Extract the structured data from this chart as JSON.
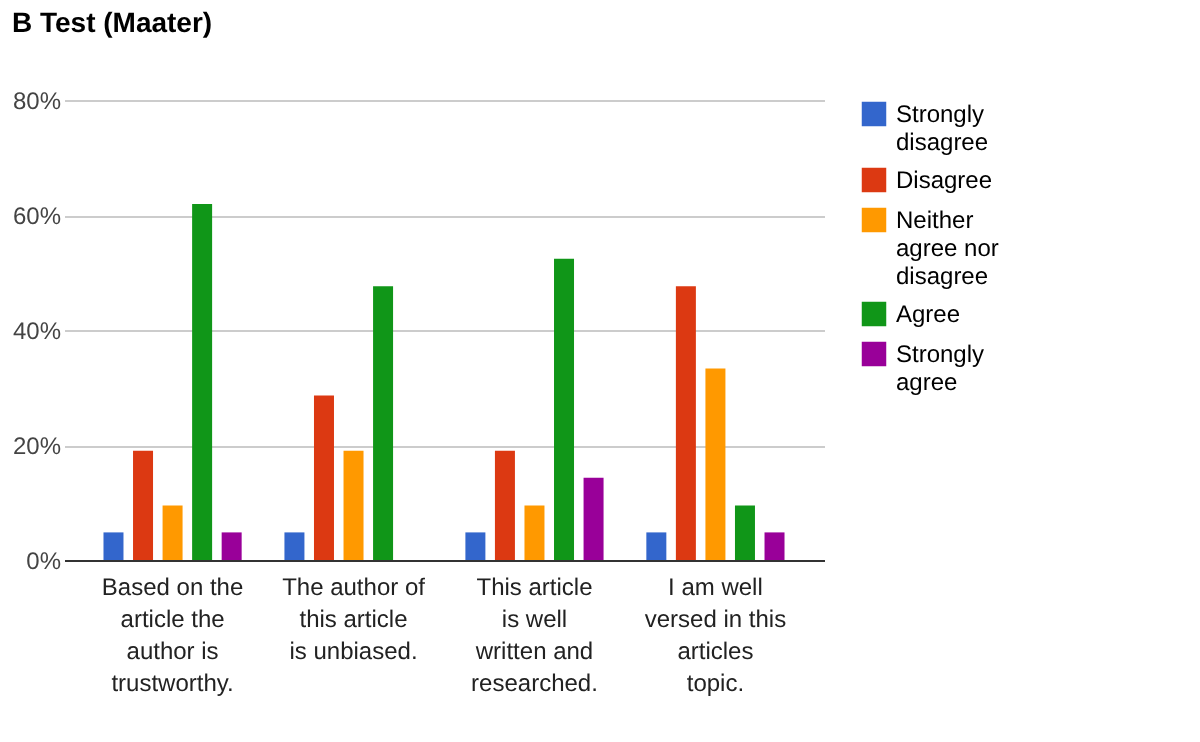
{
  "chart_data": {
    "type": "bar",
    "title": "B Test (Maater)",
    "categories": [
      "Based on the article the author is trustworthy.",
      "The author of this article is unbiased.",
      "This article is well written and researched.",
      "I am well versed in this articles topic."
    ],
    "series": [
      {
        "name": "Strongly disagree",
        "color": "#3366cc",
        "values": [
          4.8,
          4.8,
          4.8,
          4.8
        ]
      },
      {
        "name": "Disagree",
        "color": "#dc3912",
        "values": [
          19.0,
          28.6,
          19.0,
          47.6
        ]
      },
      {
        "name": "Neither agree nor disagree",
        "color": "#ff9900",
        "values": [
          9.5,
          19.0,
          9.5,
          33.3
        ]
      },
      {
        "name": "Agree",
        "color": "#109618",
        "values": [
          61.9,
          47.6,
          52.4,
          9.5
        ]
      },
      {
        "name": "Strongly agree",
        "color": "#990099",
        "values": [
          4.8,
          0,
          14.3,
          4.8
        ]
      }
    ],
    "ylim": [
      0,
      80
    ],
    "yticks": [
      {
        "value": 0,
        "label": "0%"
      },
      {
        "value": 20,
        "label": "20%"
      },
      {
        "value": 40,
        "label": "40%"
      },
      {
        "value": 60,
        "label": "60%"
      },
      {
        "value": 80,
        "label": "80%"
      }
    ],
    "grid": "y",
    "legend": "right"
  }
}
